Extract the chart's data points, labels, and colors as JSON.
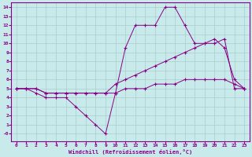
{
  "bg_color": "#c8eaea",
  "line_color": "#880088",
  "grid_color": "#aacccc",
  "xlabel": "Windchill (Refroidissement éolien,°C)",
  "xlim": [
    -0.5,
    23.5
  ],
  "ylim": [
    -0.8,
    14.5
  ],
  "xticks": [
    0,
    1,
    2,
    3,
    4,
    5,
    6,
    7,
    8,
    9,
    10,
    11,
    12,
    13,
    14,
    15,
    16,
    17,
    18,
    19,
    20,
    21,
    22,
    23
  ],
  "yticks": [
    0,
    1,
    2,
    3,
    4,
    5,
    6,
    7,
    8,
    9,
    10,
    11,
    12,
    13,
    14
  ],
  "ytick_labels": [
    "-0",
    "1",
    "2",
    "3",
    "4",
    "5",
    "6",
    "7",
    "8",
    "9",
    "10",
    "11",
    "12",
    "13",
    "14"
  ],
  "line1_x": [
    0,
    1,
    2,
    3,
    4,
    5,
    6,
    7,
    8,
    9,
    10,
    11,
    12,
    13,
    14,
    15,
    16,
    17,
    18,
    19,
    20,
    21,
    22,
    23
  ],
  "line1_y": [
    5.0,
    5.0,
    5.0,
    4.5,
    4.5,
    4.5,
    4.5,
    4.5,
    4.5,
    4.5,
    5.5,
    6.0,
    6.5,
    7.0,
    7.5,
    8.0,
    8.5,
    9.0,
    9.5,
    10.0,
    10.0,
    10.5,
    5.0,
    5.0
  ],
  "line2_x": [
    0,
    1,
    2,
    3,
    4,
    5,
    6,
    7,
    8,
    9,
    10,
    11,
    12,
    13,
    14,
    15,
    16,
    17,
    18,
    19,
    20,
    21,
    22,
    23
  ],
  "line2_y": [
    5.0,
    5.0,
    4.5,
    4.0,
    4.0,
    4.0,
    3.0,
    2.0,
    1.0,
    0.0,
    4.5,
    9.5,
    12.0,
    12.0,
    12.0,
    14.0,
    14.0,
    12.0,
    10.0,
    10.0,
    10.5,
    9.5,
    6.0,
    5.0
  ],
  "line3_x": [
    0,
    1,
    2,
    3,
    4,
    5,
    6,
    7,
    8,
    9,
    10,
    11,
    12,
    13,
    14,
    15,
    16,
    17,
    18,
    19,
    20,
    21,
    22,
    23
  ],
  "line3_y": [
    5.0,
    5.0,
    5.0,
    4.5,
    4.5,
    4.5,
    4.5,
    4.5,
    4.5,
    4.5,
    4.5,
    5.0,
    5.0,
    5.0,
    5.5,
    5.5,
    5.5,
    6.0,
    6.0,
    6.0,
    6.0,
    6.0,
    5.5,
    5.0
  ]
}
